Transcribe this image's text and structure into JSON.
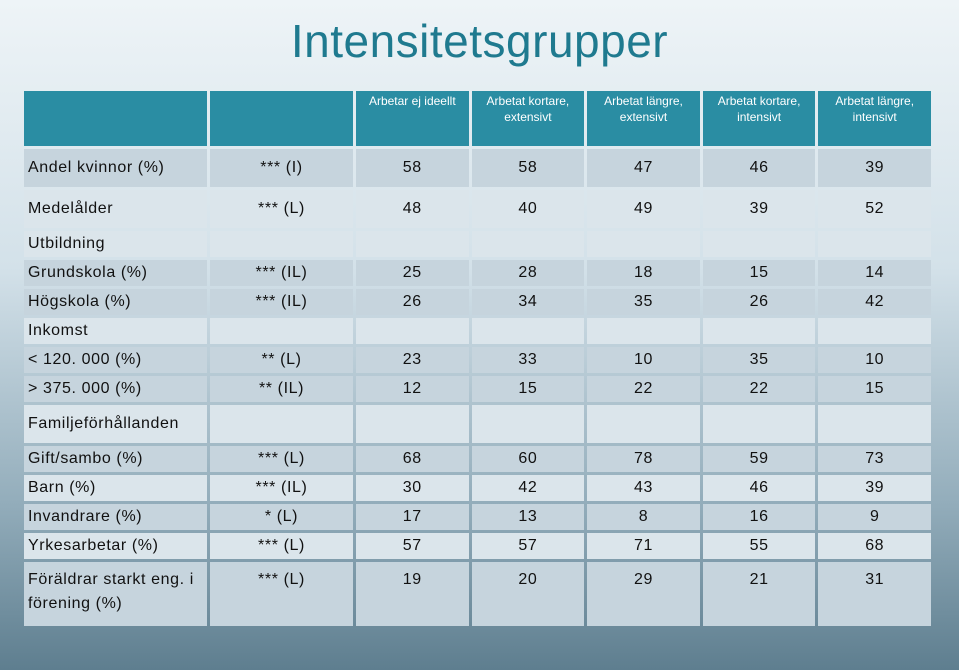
{
  "title": "Intensitetsgrupper",
  "headers": [
    "Arbetar ej ideellt",
    "Arbetat kortare, extensivt",
    "Arbetat längre, extensivt",
    "Arbetat kortare, intensivt",
    "Arbetat längre, intensivt"
  ],
  "rows": [
    {
      "label": "Andel kvinnor (%)",
      "sig": "*** (I)",
      "values": [
        "58",
        "58",
        "47",
        "46",
        "39"
      ]
    },
    {
      "label": "Medelålder",
      "sig": "*** (L)",
      "values": [
        "48",
        "40",
        "49",
        "39",
        "52"
      ]
    },
    {
      "label": "Utbildning",
      "sig": "",
      "values": [
        "",
        "",
        "",
        "",
        ""
      ]
    },
    {
      "label": "Grundskola (%)",
      "sig": "*** (IL)",
      "values": [
        "25",
        "28",
        "18",
        "15",
        "14"
      ]
    },
    {
      "label": "Högskola (%)",
      "sig": "*** (IL)",
      "values": [
        "26",
        "34",
        "35",
        "26",
        "42"
      ]
    },
    {
      "label": "Inkomst",
      "sig": "",
      "values": [
        "",
        "",
        "",
        "",
        ""
      ]
    },
    {
      "label": "< 120. 000 (%)",
      "sig": "** (L)",
      "values": [
        "23",
        "33",
        "10",
        "35",
        "10"
      ]
    },
    {
      "label": "> 375. 000 (%)",
      "sig": "** (IL)",
      "values": [
        "12",
        "15",
        "22",
        "22",
        "15"
      ]
    },
    {
      "label": "Familjeförhållanden",
      "sig": "",
      "values": [
        "",
        "",
        "",
        "",
        ""
      ]
    },
    {
      "label": "Gift/sambo (%)",
      "sig": "*** (L)",
      "values": [
        "68",
        "60",
        "78",
        "59",
        "73"
      ]
    },
    {
      "label": "Barn (%)",
      "sig": "*** (IL)",
      "values": [
        "30",
        "42",
        "43",
        "46",
        "39"
      ]
    },
    {
      "label": "Invandrare (%)",
      "sig": "* (L)",
      "values": [
        "17",
        "13",
        "8",
        "16",
        "9"
      ]
    },
    {
      "label": "Yrkesarbetar (%)",
      "sig": "*** (L)",
      "values": [
        "57",
        "57",
        "71",
        "55",
        "68"
      ]
    },
    {
      "label": "Föräldrar starkt eng. i förening (%)",
      "sig": "*** (L)",
      "values": [
        "19",
        "20",
        "29",
        "21",
        "31"
      ]
    }
  ]
}
